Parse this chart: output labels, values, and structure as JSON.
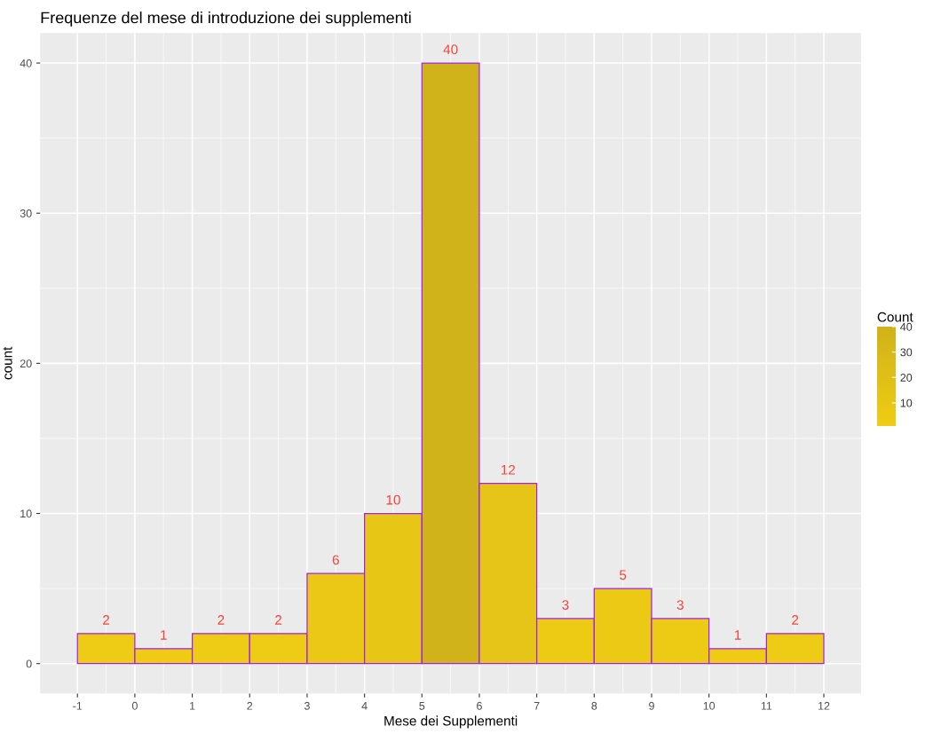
{
  "chart_data": {
    "type": "histogram",
    "title": "Frequenze del mese di introduzione dei supplementi",
    "xlabel": "Mese dei Supplementi",
    "ylabel": "count",
    "clabel": "Count",
    "bins": [
      -1,
      0,
      1,
      2,
      3,
      4,
      5,
      6,
      7,
      8,
      9,
      10,
      11,
      12
    ],
    "values": [
      2,
      1,
      2,
      2,
      6,
      10,
      40,
      12,
      3,
      5,
      3,
      1,
      2
    ],
    "colors": [
      "#eecb14",
      "#efcc13",
      "#eecb14",
      "#eecb14",
      "#ebc815",
      "#e8c616",
      "#d0b21a",
      "#e6c418",
      "#edca14",
      "#ecc915",
      "#edca14",
      "#efcc13",
      "#eecb14"
    ],
    "data_labels": true,
    "grid": true,
    "xlim": [
      -1.65,
      12.65
    ],
    "xticks": [
      -1,
      0,
      1,
      2,
      3,
      4,
      5,
      6,
      7,
      8,
      9,
      10,
      11,
      12
    ],
    "ylim": [
      -2,
      42
    ],
    "yticks": [
      0,
      10,
      20,
      30,
      40
    ],
    "clim": [
      1,
      40
    ],
    "cticks": [
      10,
      20,
      30,
      40
    ]
  }
}
